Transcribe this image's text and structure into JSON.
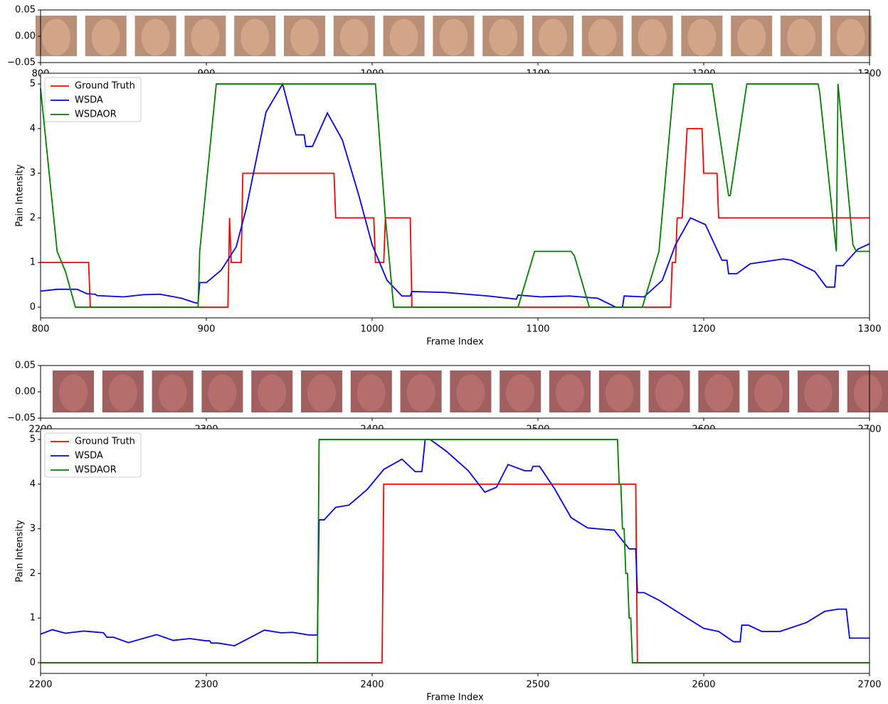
{
  "chart_data": [
    {
      "type": "image",
      "xlim": [
        800,
        1300
      ],
      "ylim": [
        -0.05,
        0.05
      ],
      "xticks": [
        800,
        900,
        1000,
        1100,
        1200,
        1300
      ],
      "yticks": [
        {
          "value": -0.05,
          "label": "−0.05"
        },
        {
          "value": 0,
          "label": "0.00"
        },
        0.05
      ]
    },
    {
      "type": "line",
      "x_label": "Frame Index",
      "y_label": "Pain Intensity",
      "xlim": [
        800,
        1300
      ],
      "ylim": [
        -0.24,
        5.24
      ],
      "xticks": [
        800,
        900,
        1000,
        1100,
        1200,
        1300
      ],
      "yticks": [
        0,
        1,
        2,
        3,
        4,
        5
      ],
      "legend": "upper left",
      "series": [
        {
          "name": "Ground Truth",
          "color": "#ff0000",
          "x": [
            800,
            829,
            830,
            913,
            914,
            915,
            921,
            922,
            977,
            978,
            1001,
            1002,
            1007,
            1008,
            1023,
            1024,
            1180,
            1181,
            1183,
            1184,
            1187,
            1190,
            1199,
            1200,
            1208,
            1209,
            1300
          ],
          "values": [
            1,
            1,
            0,
            0,
            2,
            1,
            1,
            3,
            3,
            2,
            2,
            1,
            1,
            2,
            2,
            0,
            0,
            1,
            1,
            2,
            2,
            4,
            4,
            3,
            3,
            2,
            2
          ]
        },
        {
          "name": "WSDA",
          "color": "#0000ff",
          "x": [
            800,
            810,
            822,
            828,
            833,
            834,
            850,
            862,
            872,
            885,
            893,
            895,
            896,
            900,
            909,
            918,
            924,
            936,
            946,
            954,
            959,
            960,
            964,
            973,
            982,
            992,
            1000,
            1009,
            1018,
            1023,
            1024,
            1044,
            1070,
            1087,
            1088,
            1102,
            1119,
            1136,
            1147,
            1151,
            1152,
            1164,
            1175,
            1183,
            1192,
            1201,
            1211,
            1214,
            1215,
            1220,
            1228,
            1248,
            1253,
            1267,
            1274,
            1279,
            1280,
            1284,
            1293,
            1300
          ],
          "values": [
            0.36,
            0.4,
            0.4,
            0.3,
            0.29,
            0.26,
            0.23,
            0.28,
            0.29,
            0.2,
            0.1,
            0.09,
            0.55,
            0.55,
            0.83,
            1.35,
            2.2,
            4.37,
            5,
            3.86,
            3.86,
            3.6,
            3.6,
            4.35,
            3.75,
            2.5,
            1.4,
            0.6,
            0.25,
            0.25,
            0.35,
            0.33,
            0.25,
            0.18,
            0.27,
            0.23,
            0.25,
            0.2,
            0,
            0,
            0.25,
            0.23,
            0.6,
            1.4,
            2.0,
            1.85,
            1.05,
            1.05,
            0.75,
            0.75,
            0.97,
            1.08,
            1.05,
            0.8,
            0.45,
            0.45,
            0.93,
            0.93,
            1.3,
            1.42
          ]
        },
        {
          "name": "WSDAOR",
          "color": "#008000",
          "x": [
            800,
            810,
            815,
            821,
            895,
            896,
            906,
            1002,
            1008,
            1013,
            1088,
            1098,
            1120,
            1122,
            1131,
            1163,
            1173,
            1182,
            1205,
            1209,
            1215,
            1216,
            1226,
            1269,
            1270,
            1280,
            1281,
            1290,
            1292,
            1300
          ],
          "values": [
            4.9,
            1.25,
            0.8,
            0,
            0,
            1.25,
            5,
            5,
            2,
            0,
            0,
            1.25,
            1.25,
            1.15,
            0,
            0,
            1.25,
            5,
            5,
            4,
            2.5,
            2.5,
            5,
            5,
            4.8,
            1.25,
            5,
            1.4,
            1.25,
            1.25
          ]
        }
      ]
    },
    {
      "type": "image",
      "xlim": [
        2200,
        2700
      ],
      "ylim": [
        -0.05,
        0.05
      ],
      "xticks": [
        2200,
        2300,
        2400,
        2500,
        2600,
        2700
      ],
      "yticks": [
        {
          "value": -0.05,
          "label": "−0.05"
        },
        {
          "value": 0,
          "label": "0.00"
        },
        0.05
      ]
    },
    {
      "type": "line",
      "x_label": "Frame Index",
      "y_label": "Pain Intensity",
      "xlim": [
        2200,
        2700
      ],
      "ylim": [
        -0.24,
        5.24
      ],
      "xticks": [
        2200,
        2300,
        2400,
        2500,
        2600,
        2700
      ],
      "yticks": [
        0,
        1,
        2,
        3,
        4,
        5
      ],
      "legend": "upper left",
      "series": [
        {
          "name": "Ground Truth",
          "color": "#ff0000",
          "x": [
            2200,
            2406,
            2407,
            2559,
            2560,
            2700
          ],
          "values": [
            0,
            0,
            4,
            4,
            0,
            0
          ]
        },
        {
          "name": "WSDA",
          "color": "#0000ff",
          "x": [
            2200,
            2207,
            2215,
            2226,
            2238,
            2240,
            2244,
            2253,
            2270,
            2280,
            2290,
            2300,
            2302,
            2303,
            2307,
            2317,
            2335,
            2345,
            2352,
            2362,
            2367,
            2368,
            2371,
            2378,
            2386,
            2397,
            2407,
            2418,
            2426,
            2430,
            2432,
            2435,
            2445,
            2458,
            2468,
            2475,
            2482,
            2492,
            2496,
            2497,
            2501,
            2510,
            2520,
            2530,
            2542,
            2546,
            2555,
            2559,
            2560,
            2564,
            2573,
            2590,
            2600,
            2609,
            2618,
            2622,
            2623,
            2627,
            2635,
            2646,
            2662,
            2673,
            2681,
            2686,
            2688,
            2700
          ],
          "values": [
            0.64,
            0.74,
            0.66,
            0.71,
            0.67,
            0.57,
            0.57,
            0.45,
            0.63,
            0.5,
            0.54,
            0.49,
            0.49,
            0.44,
            0.44,
            0.38,
            0.73,
            0.67,
            0.68,
            0.62,
            0.62,
            3.2,
            3.2,
            3.48,
            3.53,
            3.88,
            4.33,
            4.56,
            4.28,
            4.28,
            5,
            5,
            4.73,
            4.3,
            3.82,
            3.93,
            4.44,
            4.3,
            4.3,
            4.4,
            4.4,
            3.9,
            3.25,
            3.02,
            2.98,
            2.97,
            2.55,
            2.55,
            1.57,
            1.57,
            1.4,
            1.0,
            0.77,
            0.7,
            0.47,
            0.47,
            0.84,
            0.84,
            0.7,
            0.7,
            0.9,
            1.15,
            1.2,
            1.2,
            0.55,
            0.55
          ]
        },
        {
          "name": "WSDAOR",
          "color": "#008000",
          "x": [
            2200,
            2367,
            2368,
            2548,
            2549,
            2550,
            2551,
            2552,
            2553,
            2554,
            2555,
            2556,
            2557,
            2700
          ],
          "values": [
            0,
            0,
            5,
            5,
            4,
            4,
            3,
            3,
            2,
            2,
            1,
            1,
            0,
            0
          ]
        }
      ]
    }
  ]
}
